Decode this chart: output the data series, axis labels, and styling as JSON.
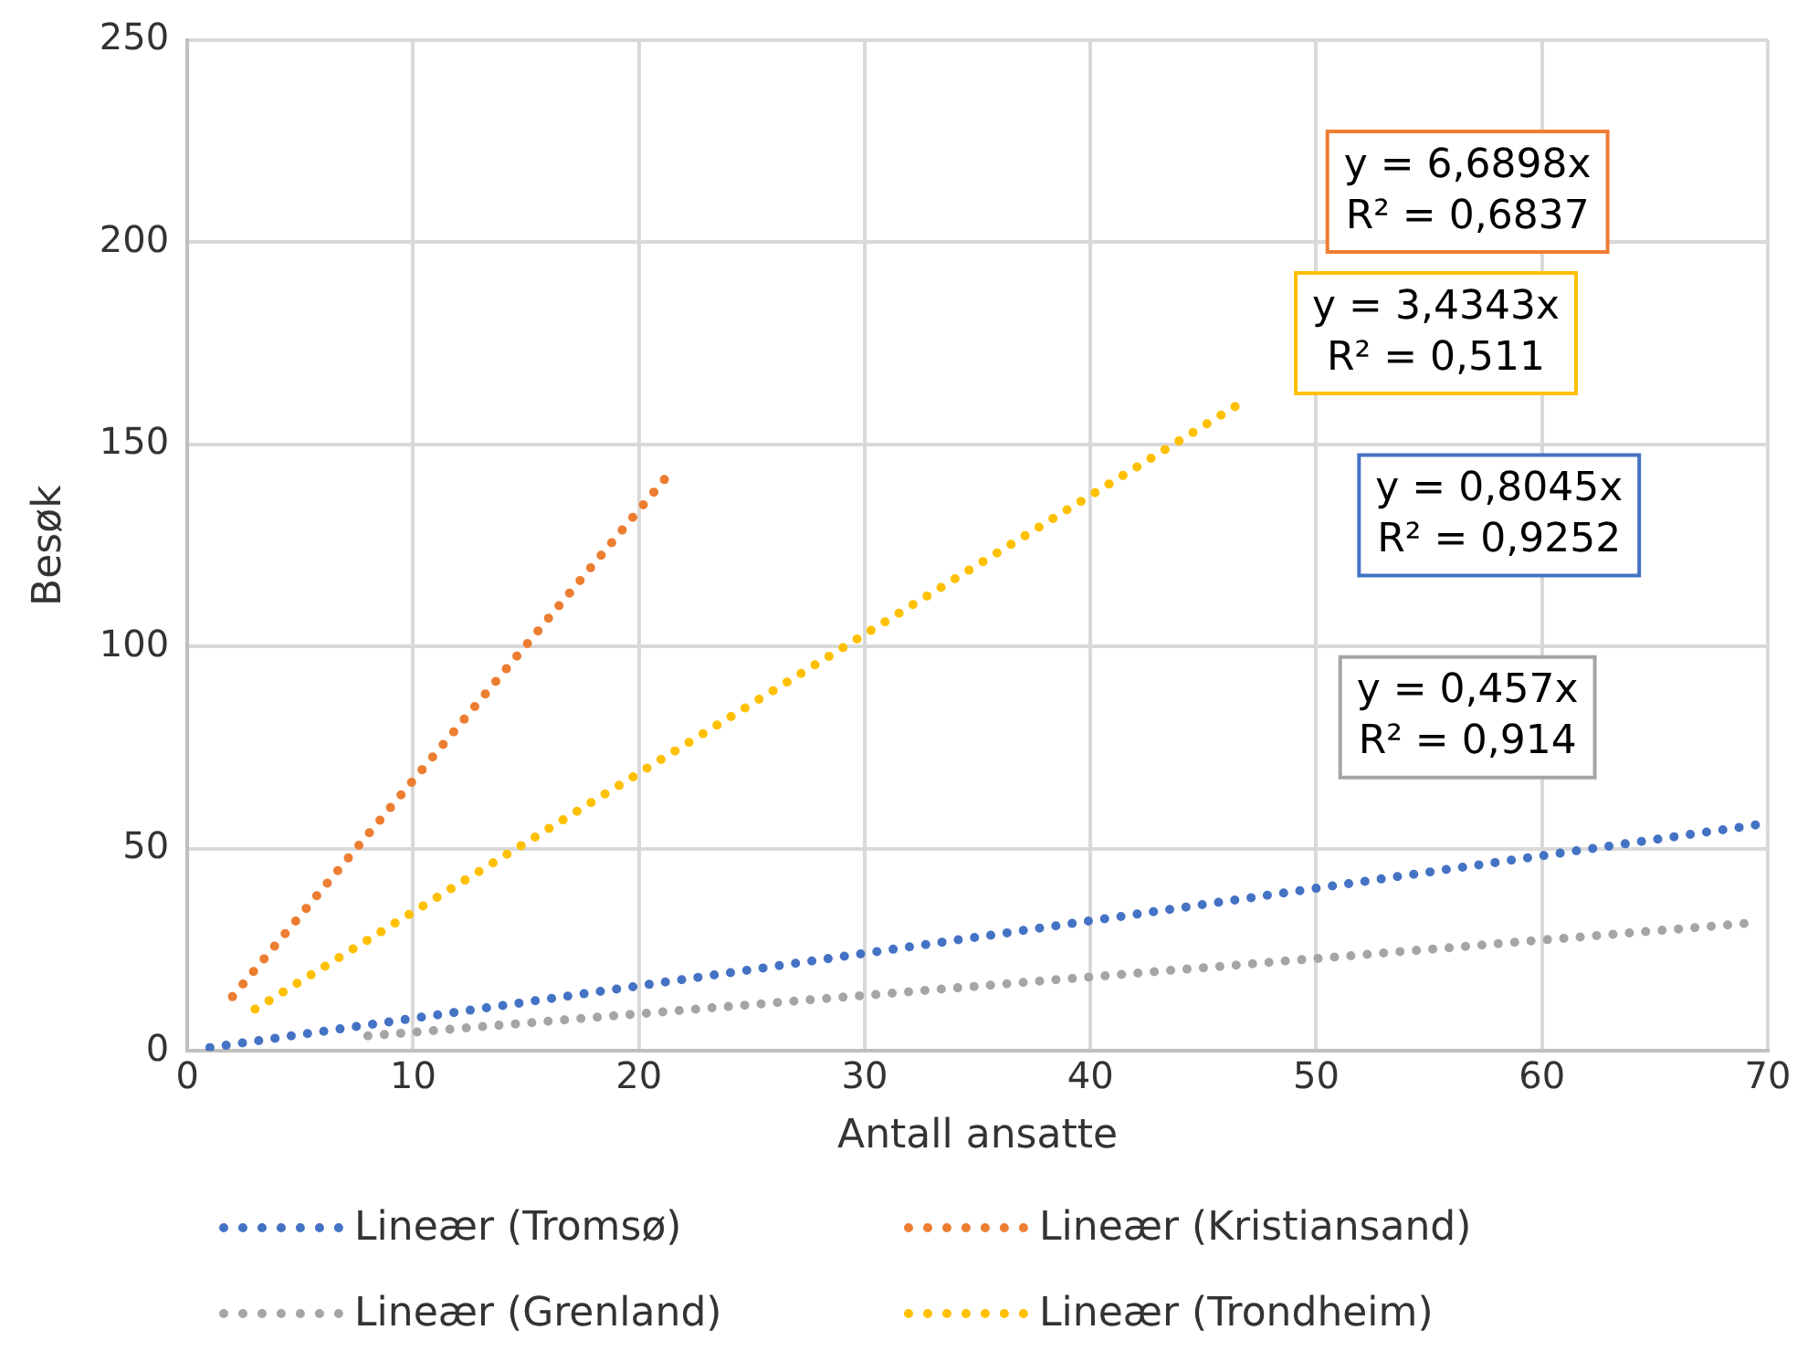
{
  "chart_data": {
    "type": "line",
    "xlabel": "Antall ansatte",
    "ylabel": "Besøk",
    "xlim": [
      0,
      70
    ],
    "xticks": [
      0,
      10,
      20,
      30,
      40,
      50,
      60,
      70
    ],
    "ylim": [
      0,
      250
    ],
    "yticks": [
      0,
      50,
      100,
      150,
      200,
      250
    ],
    "grid": true,
    "legend": "bottom",
    "marker": "none",
    "line_style": "dotted",
    "series": [
      {
        "name": "Lineær (Tromsø)",
        "color": "#4472c4",
        "x": [
          1,
          70
        ],
        "values": [
          0.8,
          56.3
        ]
      },
      {
        "name": "Lineær (Kristiansand)",
        "color": "#ed7d31",
        "x": [
          2,
          21.5
        ],
        "values": [
          13.4,
          143.8
        ]
      },
      {
        "name": "Lineær (Grenland)",
        "color": "#a5a5a5",
        "x": [
          8,
          69
        ],
        "values": [
          3.7,
          31.5
        ]
      },
      {
        "name": "Lineær (Trondheim)",
        "color": "#ffc000",
        "x": [
          3,
          46.5
        ],
        "values": [
          10.3,
          159.7
        ]
      }
    ],
    "annotations": [
      "y = 6,6898x\nR² = 0,6837",
      "y = 3,4343x\nR² = 0,511",
      "y = 0,8045x\nR² = 0,9252",
      "y = 0,457x\nR² = 0,914"
    ]
  }
}
